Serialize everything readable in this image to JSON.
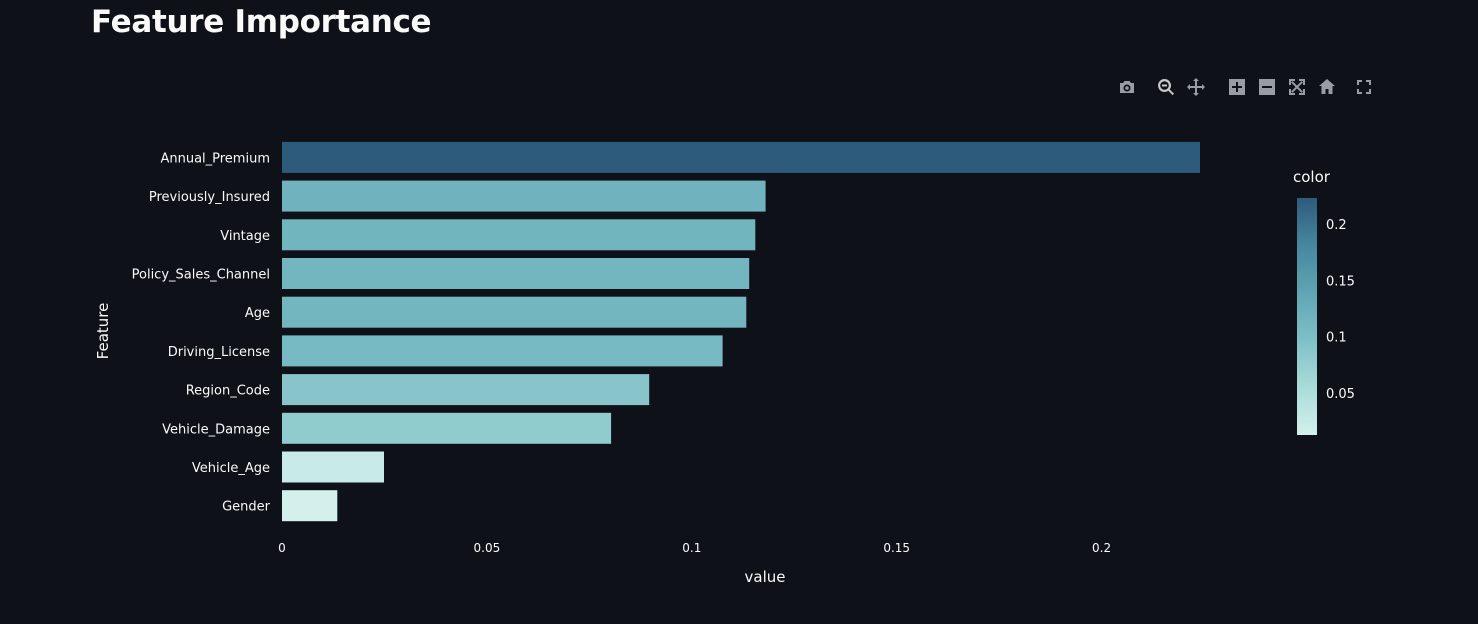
{
  "page_title": "Feature Importance",
  "modebar": {
    "buttons": [
      {
        "name": "camera-icon"
      },
      {
        "name": "zoom-icon"
      },
      {
        "name": "pan-icon"
      },
      {
        "name": "zoom-in-icon"
      },
      {
        "name": "zoom-out-icon"
      },
      {
        "name": "autoscale-icon"
      },
      {
        "name": "home-icon"
      },
      {
        "name": "fullscreen-icon"
      }
    ]
  },
  "chart_data": {
    "type": "bar",
    "orientation": "horizontal",
    "title": "Feature Importance",
    "xlabel": "value",
    "ylabel": "Feature",
    "categories": [
      "Annual_Premium",
      "Previously_Insured",
      "Vintage",
      "Policy_Sales_Channel",
      "Age",
      "Driving_License",
      "Region_Code",
      "Vehicle_Damage",
      "Vehicle_Age",
      "Gender"
    ],
    "values": [
      0.224,
      0.118,
      0.1155,
      0.114,
      0.1133,
      0.1075,
      0.0896,
      0.0803,
      0.0249,
      0.0135
    ],
    "xlim": [
      0,
      0.224
    ],
    "xticks": [
      0,
      0.05,
      0.1,
      0.15,
      0.2
    ],
    "xtick_labels": [
      "0",
      "0.05",
      "0.1",
      "0.15",
      "0.2"
    ],
    "grid": false,
    "colorbar": {
      "title": "color",
      "range": [
        0.0135,
        0.224
      ],
      "ticks": [
        0.05,
        0.1,
        0.15,
        0.2
      ],
      "tick_labels": [
        "0.05",
        "0.1",
        "0.15",
        "0.2"
      ],
      "colorscale": [
        "#d4f0ec",
        "#a9dcd9",
        "#7fc0c7",
        "#5fa5b4",
        "#46879f",
        "#2d5b7c"
      ]
    }
  }
}
